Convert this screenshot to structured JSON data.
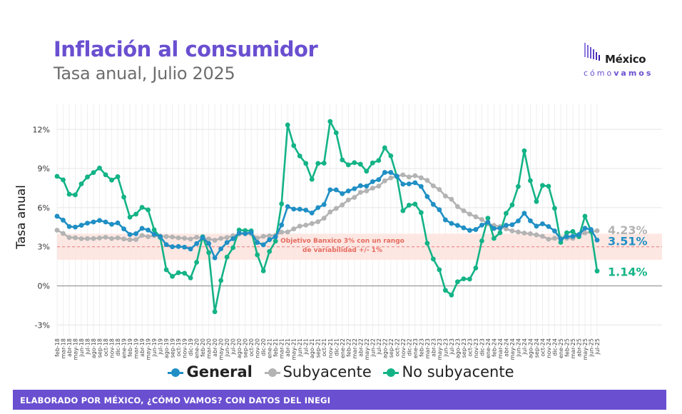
{
  "header": {
    "title": "Inflación al consumidor",
    "subtitle": "Tasa anual, Julio 2025"
  },
  "logo": {
    "word": "México",
    "tag_light": "cómo",
    "tag_bold": "vamos"
  },
  "footer": {
    "text": "ELABORADO POR MÉXICO, ¿CÓMO VAMOS? CON DATOS DEL INEGI"
  },
  "colors": {
    "title": "#6a4fd0",
    "general": "#1f8fc4",
    "subyacente": "#b3b3b3",
    "no_subyacente": "#13b386",
    "band": "#fde3de",
    "target_line": "#e87d7d",
    "footer": "#6a4fd0"
  },
  "chart_data": {
    "type": "line",
    "ylabel": "Tasa anual",
    "ylim": [
      -4,
      13.5
    ],
    "y_ticks": [
      -3,
      0,
      3,
      6,
      9,
      12
    ],
    "y_tick_labels": [
      "-3%",
      "0%",
      "3%",
      "6%",
      "9%",
      "12%"
    ],
    "grid": true,
    "legend_position": "bottom",
    "x": [
      "feb-18",
      "mar-18",
      "abr-18",
      "may-18",
      "jun-18",
      "jul-18",
      "ago-18",
      "sep-18",
      "oct-18",
      "nov-18",
      "dic-18",
      "ene-19",
      "feb-19",
      "mar-19",
      "abr-19",
      "may-19",
      "jun-19",
      "jul-19",
      "ago-19",
      "sep-19",
      "oct-19",
      "nov-19",
      "dic-19",
      "ene-20",
      "feb-20",
      "mar-20",
      "abr-20",
      "may-20",
      "jun-20",
      "jul-20",
      "ago-20",
      "sep-20",
      "oct-20",
      "nov-20",
      "dic-20",
      "ene-21",
      "feb-21",
      "mar-21",
      "abr-21",
      "may-21",
      "jun-21",
      "jul-21",
      "ago-21",
      "sep-21",
      "oct-21",
      "nov-21",
      "dic-21",
      "ene-22",
      "feb-22",
      "mar-22",
      "abr-22",
      "may-22",
      "jun-22",
      "jul-22",
      "ago-22",
      "sep-22",
      "oct-22",
      "nov-22",
      "dic-22",
      "ene-23",
      "feb-23",
      "mar-23",
      "abr-23",
      "may-23",
      "jun-23",
      "jul-23",
      "ago-23",
      "sep-23",
      "oct-23",
      "nov-23",
      "dic-23",
      "ene-24",
      "feb-24",
      "mar-24",
      "abr-24",
      "may-24",
      "jun-24",
      "jul-24",
      "ago-24",
      "sep-24",
      "oct-24",
      "nov-24",
      "dic-24",
      "ene-25",
      "feb-25",
      "mar-25",
      "abr-25",
      "may-25",
      "jun-25",
      "jul-25"
    ],
    "series": [
      {
        "name": "General",
        "values": [
          5.34,
          5.04,
          4.55,
          4.51,
          4.65,
          4.81,
          4.9,
          5.02,
          4.9,
          4.72,
          4.83,
          4.37,
          3.94,
          4.0,
          4.41,
          4.28,
          3.95,
          3.78,
          3.16,
          3.0,
          3.02,
          2.97,
          2.83,
          3.24,
          3.7,
          3.25,
          2.15,
          2.84,
          3.33,
          3.62,
          4.05,
          4.01,
          4.09,
          3.33,
          3.15,
          3.54,
          3.76,
          4.67,
          6.08,
          5.89,
          5.88,
          5.81,
          5.59,
          6.0,
          6.24,
          7.37,
          7.36,
          7.07,
          7.28,
          7.45,
          7.68,
          7.65,
          7.99,
          8.15,
          8.7,
          8.7,
          8.41,
          7.8,
          7.82,
          7.91,
          7.62,
          6.85,
          6.25,
          5.84,
          5.06,
          4.79,
          4.64,
          4.45,
          4.26,
          4.32,
          4.66,
          4.88,
          4.4,
          4.42,
          4.65,
          4.69,
          4.98,
          5.57,
          4.99,
          4.58,
          4.76,
          4.55,
          4.21,
          3.59,
          3.77,
          3.8,
          3.93,
          4.42,
          4.32,
          3.51
        ]
      },
      {
        "name": "Subyacente",
        "values": [
          4.27,
          4.02,
          3.71,
          3.69,
          3.62,
          3.63,
          3.63,
          3.67,
          3.73,
          3.63,
          3.68,
          3.6,
          3.54,
          3.55,
          3.87,
          3.77,
          3.85,
          3.82,
          3.78,
          3.75,
          3.68,
          3.65,
          3.59,
          3.73,
          3.66,
          3.6,
          3.5,
          3.64,
          3.71,
          3.85,
          3.97,
          3.99,
          3.98,
          3.66,
          3.8,
          3.84,
          3.87,
          4.12,
          4.13,
          4.37,
          4.58,
          4.66,
          4.78,
          4.92,
          5.19,
          5.67,
          5.94,
          6.21,
          6.59,
          6.78,
          7.17,
          7.28,
          7.49,
          7.65,
          8.05,
          8.28,
          8.42,
          8.51,
          8.35,
          8.45,
          8.29,
          8.09,
          7.67,
          7.39,
          6.89,
          6.64,
          6.08,
          5.76,
          5.5,
          5.3,
          5.09,
          4.76,
          4.64,
          4.55,
          4.37,
          4.21,
          4.13,
          4.05,
          4.0,
          3.91,
          3.8,
          3.58,
          3.65,
          3.66,
          3.65,
          3.64,
          3.93,
          4.06,
          4.13,
          4.23
        ]
      },
      {
        "name": "No subyacente",
        "values": [
          8.4,
          8.13,
          7.03,
          6.98,
          7.82,
          8.35,
          8.69,
          9.04,
          8.52,
          8.11,
          8.37,
          6.81,
          5.27,
          5.5,
          6.02,
          5.83,
          4.3,
          3.72,
          1.24,
          0.73,
          1.01,
          0.97,
          0.61,
          1.81,
          3.77,
          2.55,
          -1.98,
          0.41,
          2.21,
          2.93,
          4.28,
          4.24,
          4.22,
          2.38,
          1.15,
          2.64,
          3.43,
          6.29,
          12.34,
          10.76,
          9.96,
          9.39,
          8.17,
          9.39,
          9.41,
          12.61,
          11.74,
          9.66,
          9.28,
          9.45,
          9.33,
          8.79,
          9.43,
          9.62,
          10.59,
          9.97,
          8.38,
          5.76,
          6.19,
          6.27,
          5.62,
          3.27,
          2.06,
          1.24,
          -0.34,
          -0.7,
          0.31,
          0.54,
          0.52,
          1.37,
          3.45,
          5.19,
          3.64,
          4.07,
          5.56,
          6.21,
          7.62,
          10.36,
          8.07,
          6.47,
          7.7,
          7.64,
          5.95,
          3.34,
          4.07,
          4.17,
          3.77,
          5.34,
          4.2,
          1.14
        ]
      }
    ],
    "annotation": "Objetivo Banxico 3% con un rango de variabilidad +/- 1%",
    "target": 3,
    "band": [
      2,
      4
    ],
    "end_labels": {
      "general": "3.51%",
      "subyacente": "4.23%",
      "no_subyacente": "1.14%"
    }
  }
}
